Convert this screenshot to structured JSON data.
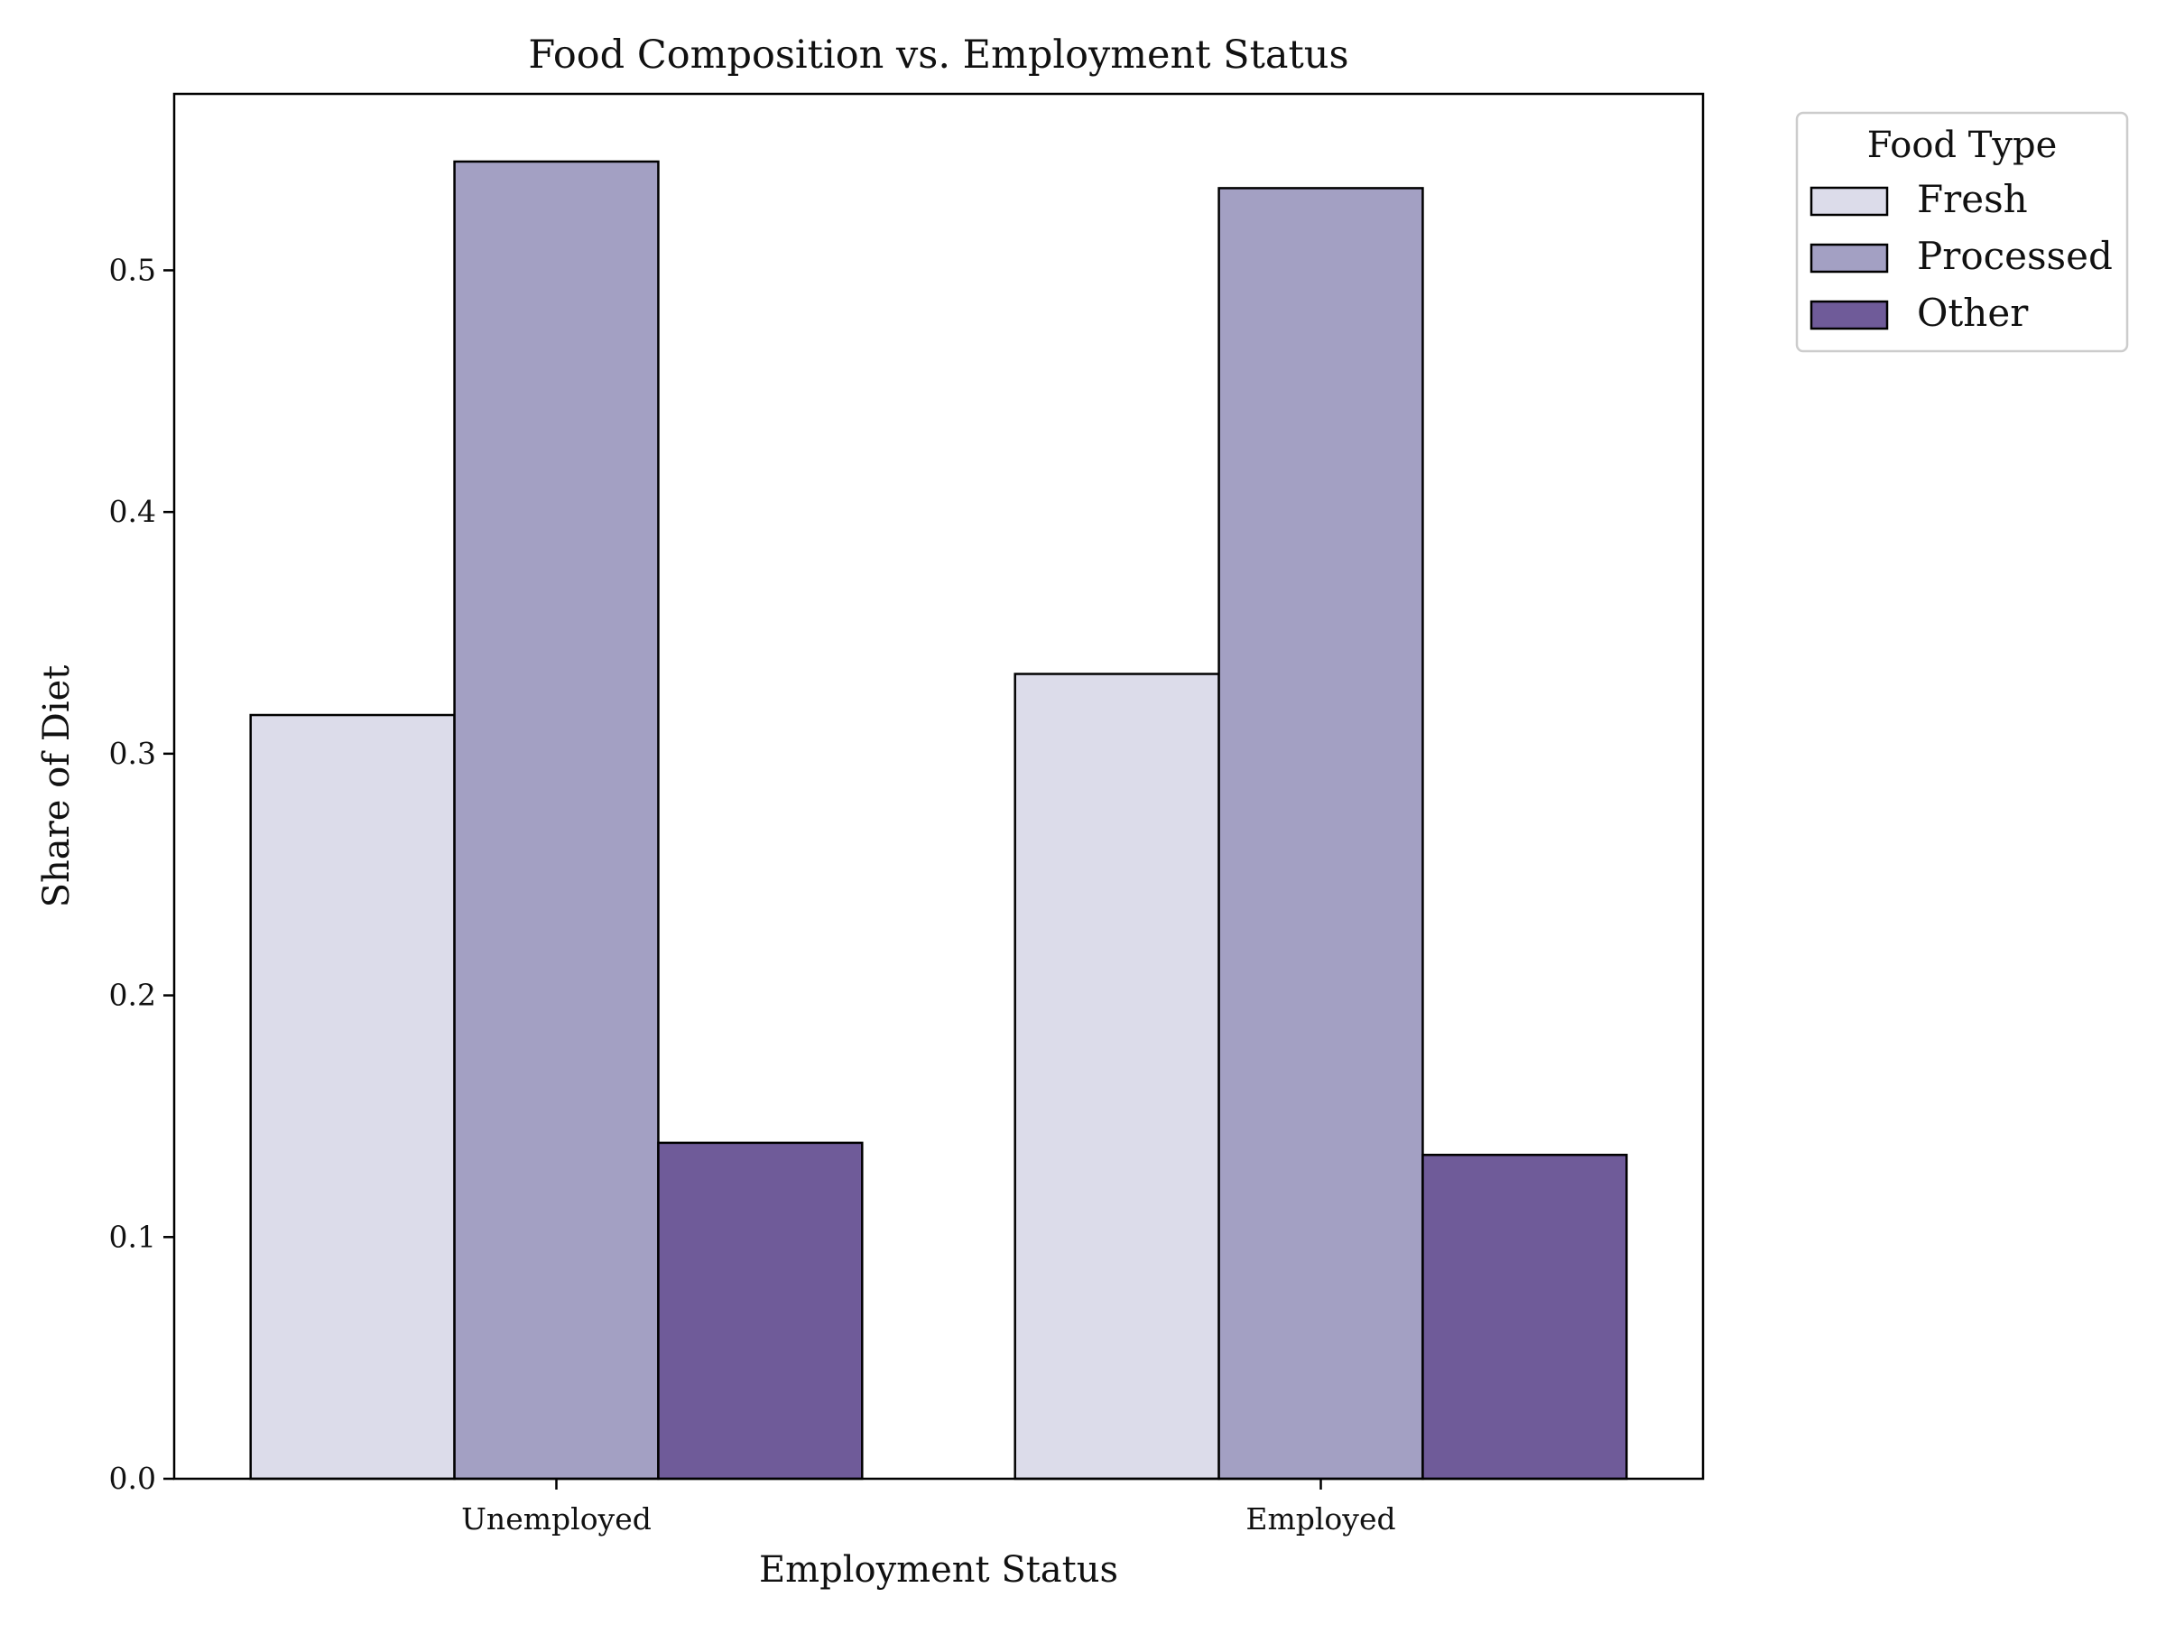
{
  "chart_data": {
    "type": "bar",
    "title": "Food Composition vs. Employment Status",
    "xlabel": "Employment Status",
    "ylabel": "Share of Diet",
    "categories": [
      "Unemployed",
      "Employed"
    ],
    "series": [
      {
        "name": "Fresh",
        "values": [
          0.316,
          0.333
        ],
        "color": "#dcdcea"
      },
      {
        "name": "Processed",
        "values": [
          0.545,
          0.534
        ],
        "color": "#a3a0c3"
      },
      {
        "name": "Other",
        "values": [
          0.139,
          0.134
        ],
        "color": "#6f5b99"
      }
    ],
    "ylim": [
      0.0,
      0.573
    ],
    "yticks": [
      "0.0",
      "0.1",
      "0.2",
      "0.3",
      "0.4",
      "0.5"
    ],
    "grid": false,
    "legend": {
      "title": "Food Type",
      "placement": "outside-top-right"
    }
  }
}
